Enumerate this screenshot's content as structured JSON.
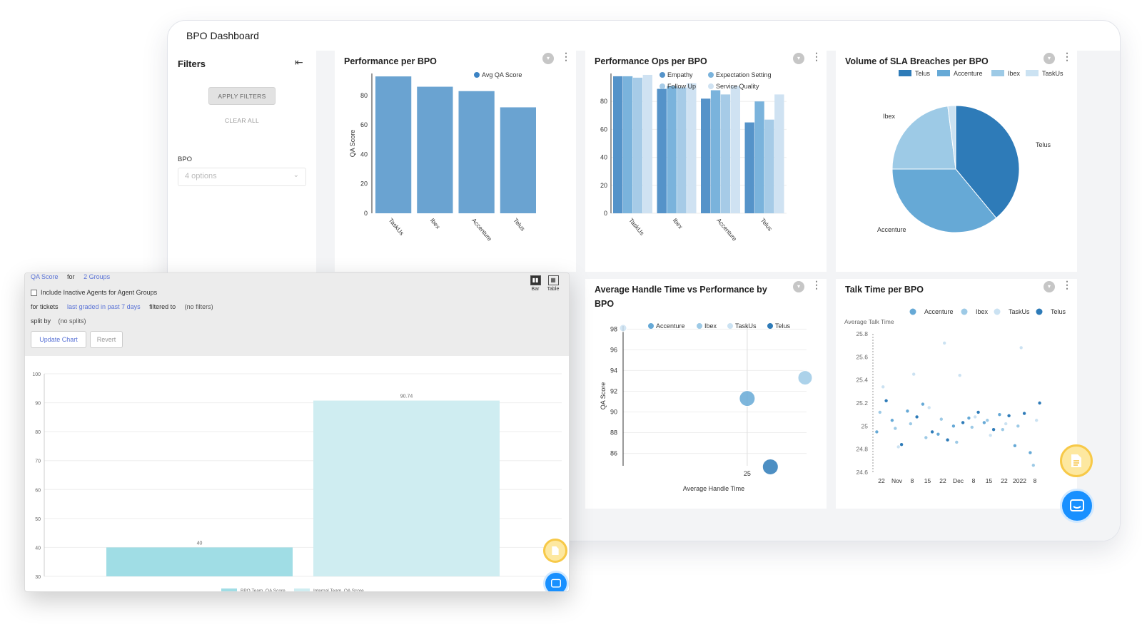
{
  "app": {
    "title": "BPO Dashboard"
  },
  "filters": {
    "title": "Filters",
    "collapse_icon": "collapse-left-icon",
    "apply_label": "APPLY FILTERS",
    "clear_label": "CLEAR ALL",
    "bpo_label": "BPO",
    "bpo_placeholder": "4 options"
  },
  "cards": {
    "perf": {
      "title": "Performance per BPO"
    },
    "ops": {
      "title": "Performance Ops per BPO"
    },
    "sla": {
      "title": "Volume of SLA Breaches per BPO"
    },
    "aht_line1": "Average Handle Time vs Performance by",
    "aht_line2": "BPO",
    "talk": {
      "title": "Talk Time per BPO"
    }
  },
  "colors": {
    "telus": "#2e7bb8",
    "accenture": "#66a9d6",
    "ibex": "#9dcae6",
    "taskus": "#cbe2f2",
    "bar_teal": "#a0dde5",
    "bar_light": "#cfedf1"
  },
  "chart_data": [
    {
      "type": "bar",
      "title": "Performance per BPO",
      "categories": [
        "TaskUs",
        "Ibex",
        "Accenture",
        "Telus"
      ],
      "series": [
        {
          "name": "Avg QA Score",
          "values": [
            93,
            86,
            83,
            72
          ]
        }
      ],
      "ylabel": "QA Score",
      "yticks": [
        0,
        20,
        40,
        60,
        80
      ],
      "ylim": [
        0,
        95
      ]
    },
    {
      "type": "bar",
      "title": "Performance Ops per BPO",
      "categories": [
        "TaskUs",
        "Ibex",
        "Accenture",
        "Telus"
      ],
      "series": [
        {
          "name": "Empathy",
          "values": [
            98,
            89,
            82,
            65
          ]
        },
        {
          "name": "Expectation Setting",
          "values": [
            98,
            91,
            88,
            80
          ]
        },
        {
          "name": "Follow Up",
          "values": [
            97,
            90,
            85,
            67
          ]
        },
        {
          "name": "Service Quality",
          "values": [
            99,
            93,
            91,
            85
          ]
        }
      ],
      "yticks": [
        0,
        20,
        40,
        60,
        80
      ],
      "ylim": [
        0,
        100
      ]
    },
    {
      "type": "pie",
      "title": "Volume of SLA Breaches per BPO",
      "legend": [
        "Telus",
        "Accenture",
        "Ibex",
        "TaskUs"
      ],
      "labels": [
        "Telus",
        "Accenture",
        "Ibex"
      ],
      "series": [
        {
          "name": "Telus",
          "value": 39
        },
        {
          "name": "Accenture",
          "value": 36
        },
        {
          "name": "Ibex",
          "value": 23
        },
        {
          "name": "TaskUs",
          "value": 2
        }
      ]
    },
    {
      "type": "scatter",
      "title": "Average Handle Time vs Performance by BPO",
      "xlabel": "Average Handle Time",
      "ylabel": "QA Score",
      "legend": [
        "Accenture",
        "Ibex",
        "TaskUs",
        "Telus"
      ],
      "xtick": "25",
      "yticks": [
        86,
        88,
        90,
        92,
        94,
        96,
        98
      ],
      "points": [
        {
          "series": "Accenture",
          "x": 25,
          "y": 91.3
        },
        {
          "series": "Ibex",
          "x": 32,
          "y": 93.3
        },
        {
          "series": "Telus",
          "x": 27.8,
          "y": 84.7
        },
        {
          "series": "TaskUs",
          "x": 10,
          "y": 98.1
        }
      ]
    },
    {
      "type": "scatter",
      "title": "Talk Time per BPO",
      "ylabel": "Average Talk Time",
      "legend": [
        "Accenture",
        "Ibex",
        "TaskUs",
        "Telus"
      ],
      "xticks": [
        "22",
        "Nov",
        "8",
        "15",
        "22",
        "Dec",
        "8",
        "15",
        "22",
        "2022",
        "8"
      ],
      "yticks": [
        "24.6",
        "24.8",
        "25",
        "25.2",
        "25.4",
        "25.6",
        "25.8"
      ],
      "ylim": [
        24.6,
        25.8
      ],
      "points": [
        {
          "series": "Accenture",
          "x": 0,
          "y": 24.95
        },
        {
          "series": "Accenture",
          "x": 1,
          "y": 25.05
        },
        {
          "series": "Accenture",
          "x": 2,
          "y": 25.13
        },
        {
          "series": "Accenture",
          "x": 3,
          "y": 25.19
        },
        {
          "series": "Accenture",
          "x": 4,
          "y": 24.93
        },
        {
          "series": "Accenture",
          "x": 5,
          "y": 25.0
        },
        {
          "series": "Accenture",
          "x": 6,
          "y": 25.07
        },
        {
          "series": "Accenture",
          "x": 7,
          "y": 25.03
        },
        {
          "series": "Accenture",
          "x": 8,
          "y": 25.1
        },
        {
          "series": "Accenture",
          "x": 9,
          "y": 24.83
        },
        {
          "series": "Accenture",
          "x": 10,
          "y": 24.77
        },
        {
          "series": "Ibex",
          "x": 0,
          "y": 25.12
        },
        {
          "series": "Ibex",
          "x": 1,
          "y": 24.98
        },
        {
          "series": "Ibex",
          "x": 2,
          "y": 25.02
        },
        {
          "series": "Ibex",
          "x": 3,
          "y": 24.9
        },
        {
          "series": "Ibex",
          "x": 4,
          "y": 25.06
        },
        {
          "series": "Ibex",
          "x": 5,
          "y": 24.86
        },
        {
          "series": "Ibex",
          "x": 6,
          "y": 24.99
        },
        {
          "series": "Ibex",
          "x": 7,
          "y": 25.05
        },
        {
          "series": "Ibex",
          "x": 8,
          "y": 24.97
        },
        {
          "series": "Ibex",
          "x": 9,
          "y": 25.0
        },
        {
          "series": "Ibex",
          "x": 10,
          "y": 24.66
        },
        {
          "series": "TaskUs",
          "x": 0,
          "y": 25.34
        },
        {
          "series": "TaskUs",
          "x": 1,
          "y": 24.82
        },
        {
          "series": "TaskUs",
          "x": 2,
          "y": 25.45
        },
        {
          "series": "TaskUs",
          "x": 3,
          "y": 25.16
        },
        {
          "series": "TaskUs",
          "x": 4,
          "y": 25.72
        },
        {
          "series": "TaskUs",
          "x": 5,
          "y": 25.44
        },
        {
          "series": "TaskUs",
          "x": 6,
          "y": 25.08
        },
        {
          "series": "TaskUs",
          "x": 7,
          "y": 24.92
        },
        {
          "series": "TaskUs",
          "x": 8,
          "y": 25.02
        },
        {
          "series": "TaskUs",
          "x": 9,
          "y": 25.68
        },
        {
          "series": "TaskUs",
          "x": 10,
          "y": 25.05
        },
        {
          "series": "Telus",
          "x": 0,
          "y": 25.22
        },
        {
          "series": "Telus",
          "x": 1,
          "y": 24.84
        },
        {
          "series": "Telus",
          "x": 2,
          "y": 25.08
        },
        {
          "series": "Telus",
          "x": 3,
          "y": 24.95
        },
        {
          "series": "Telus",
          "x": 4,
          "y": 24.88
        },
        {
          "series": "Telus",
          "x": 5,
          "y": 25.03
        },
        {
          "series": "Telus",
          "x": 6,
          "y": 25.12
        },
        {
          "series": "Telus",
          "x": 7,
          "y": 24.97
        },
        {
          "series": "Telus",
          "x": 8,
          "y": 25.09
        },
        {
          "series": "Telus",
          "x": 9,
          "y": 25.11
        },
        {
          "series": "Telus",
          "x": 10,
          "y": 25.2
        }
      ]
    },
    {
      "type": "bar",
      "categories": [
        "BPO Team_QA Score",
        "Internal Team_QA Score"
      ],
      "values": [
        40,
        90.74
      ],
      "yticks": [
        30,
        40,
        50,
        60,
        70,
        80,
        90,
        100
      ],
      "ylim": [
        30,
        100
      ],
      "data_labels": [
        "40",
        "90.74"
      ]
    }
  ],
  "explorer": {
    "metric": "QA Score",
    "for_label": "for",
    "groups": "2 Groups",
    "inactive_label": "Include Inactive Agents for Agent Groups",
    "tickets_label": "for tickets",
    "tickets_value": "last graded in past 7 days",
    "filtered_label": "filtered to",
    "filtered_value": "(no filters)",
    "split_label": "split by",
    "split_value": "(no splits)",
    "update_label": "Update Chart",
    "revert_label": "Revert",
    "bar_view_label": "Bar",
    "table_view_label": "Table",
    "legend": [
      "BPO Team_QA Score",
      "Internal Team_QA Score"
    ]
  },
  "icons": {
    "card_filter": "filter-icon",
    "card_menu": "more-vertical-icon",
    "fab_doc": "document-icon",
    "fab_chat": "chat-icon"
  }
}
